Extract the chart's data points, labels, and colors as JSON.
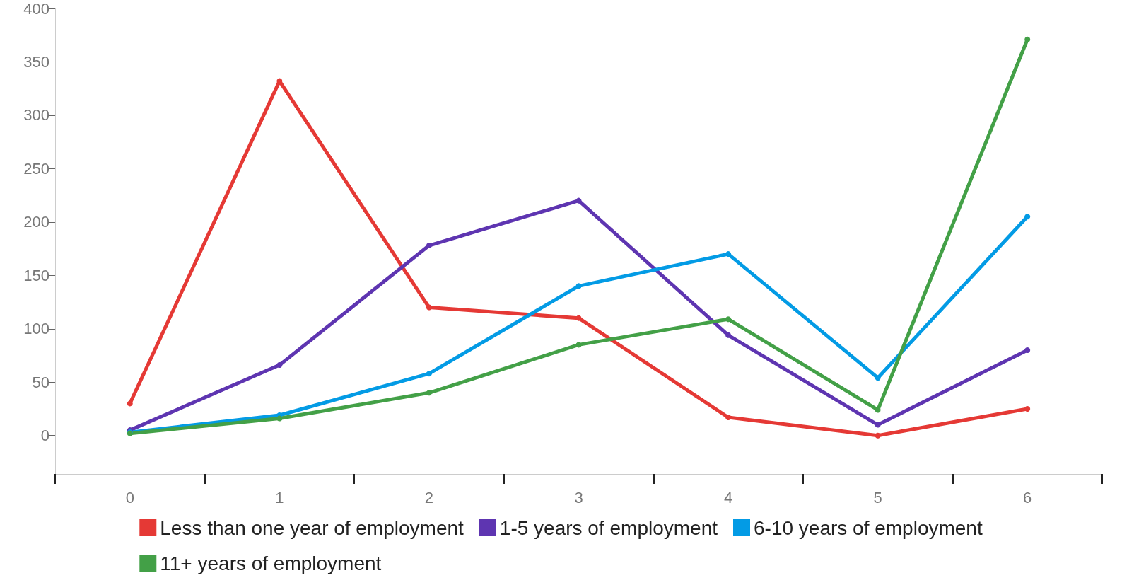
{
  "chart_data": {
    "type": "line",
    "categories": [
      "0",
      "1",
      "2",
      "3",
      "4",
      "5",
      "6"
    ],
    "series": [
      {
        "name": "Less than one year of employment",
        "color": "#e53935",
        "values": [
          30,
          332,
          120,
          110,
          17,
          0,
          25
        ]
      },
      {
        "name": "1-5 years of employment",
        "color": "#5e35b1",
        "values": [
          5,
          66,
          178,
          220,
          94,
          10,
          80
        ]
      },
      {
        "name": "6-10 years of employment",
        "color": "#039be5",
        "values": [
          3,
          19,
          58,
          140,
          170,
          54,
          205
        ]
      },
      {
        "name": "11+ years of employment",
        "color": "#43a047",
        "values": [
          2,
          16,
          40,
          85,
          109,
          24,
          371
        ]
      }
    ],
    "ylim": [
      -36,
      400
    ],
    "yticks": [
      0,
      50,
      100,
      150,
      200,
      250,
      300,
      350,
      400
    ],
    "grid": false,
    "legend": "bottom",
    "marker": "circle",
    "line_style": "solid"
  }
}
